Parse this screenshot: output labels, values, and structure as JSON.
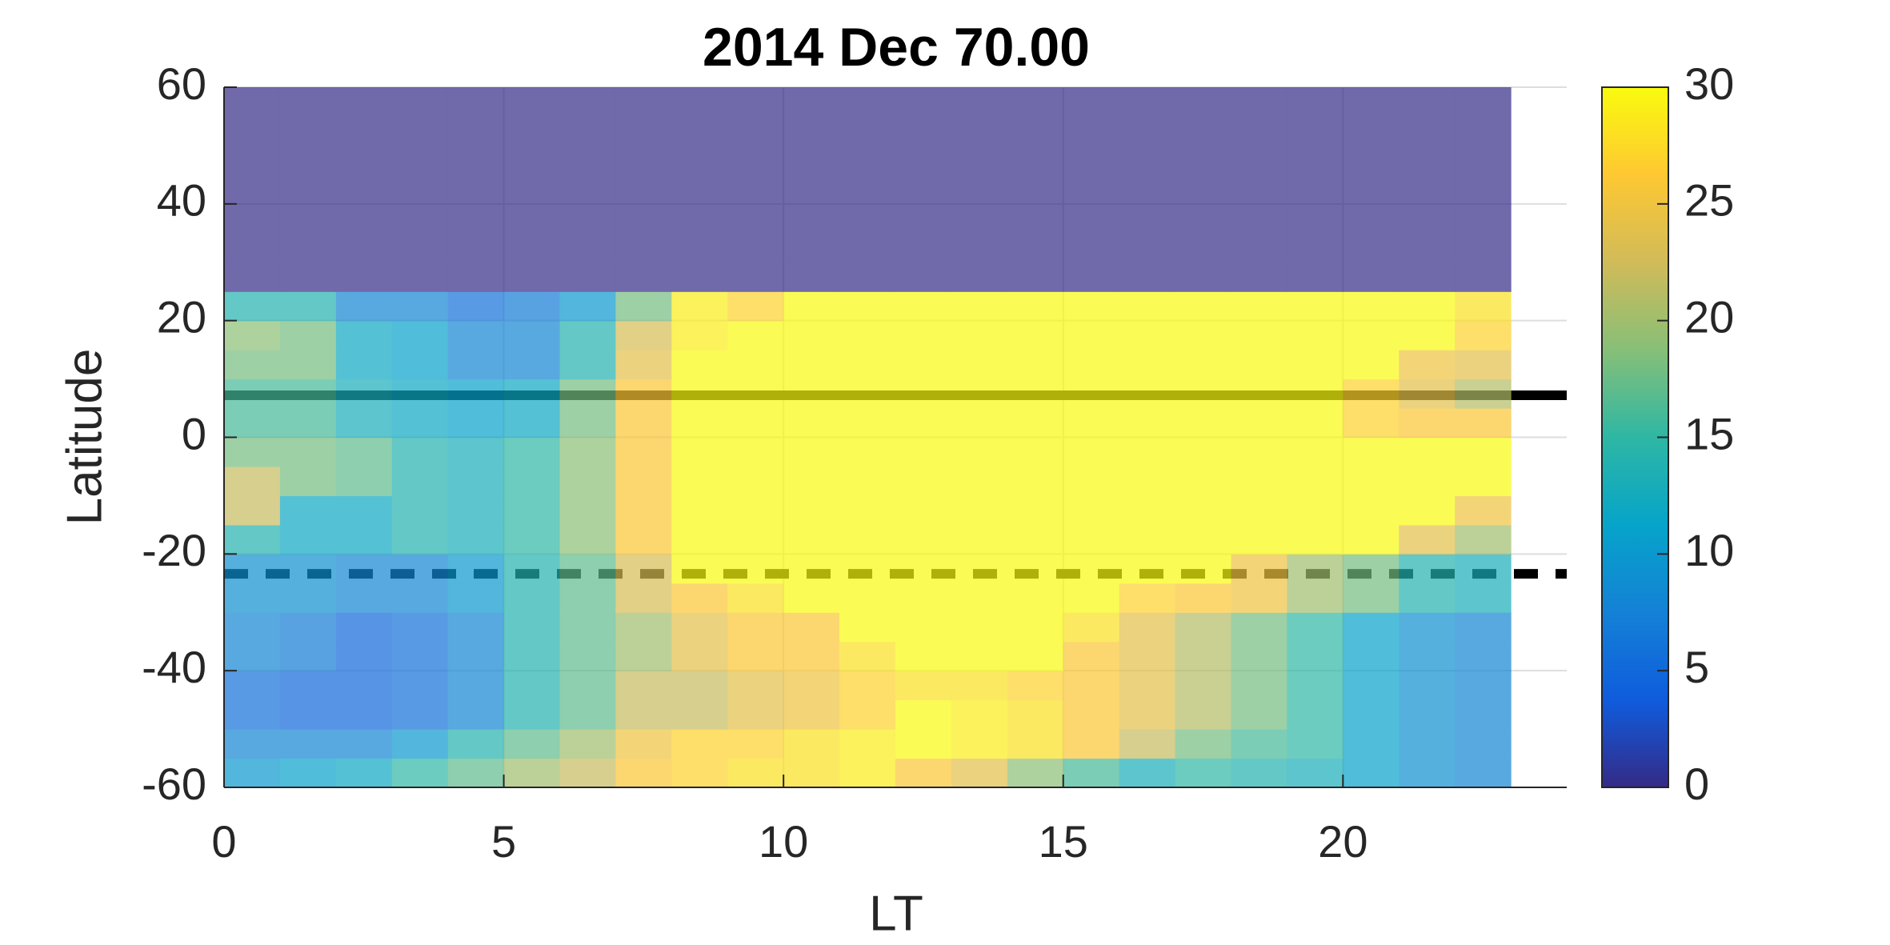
{
  "chart_data": {
    "type": "heatmap",
    "title": "2014 Dec    70.00",
    "xlabel": "LT",
    "ylabel": "Latitude",
    "xlim": [
      0,
      24
    ],
    "ylim": [
      -60,
      60
    ],
    "xticks": [
      0,
      5,
      10,
      15,
      20
    ],
    "yticks": [
      -60,
      -40,
      -20,
      0,
      20,
      40,
      60
    ],
    "grid": true,
    "alpha": 0.7,
    "x_edges": [
      0,
      1,
      2,
      3,
      4,
      5,
      6,
      7,
      8,
      9,
      10,
      11,
      12,
      13,
      14,
      15,
      16,
      17,
      18,
      19,
      20,
      21,
      22,
      23
    ],
    "y_edges": [
      -60,
      -55,
      -50,
      -45,
      -40,
      -35,
      -30,
      -25,
      -20,
      -15,
      -10,
      -5,
      0,
      5,
      10,
      15,
      20,
      25,
      30,
      35,
      40,
      45,
      50,
      55,
      60
    ],
    "z": [
      [
        10,
        11,
        12,
        15,
        17,
        20,
        22,
        26,
        27,
        28,
        28,
        29,
        26,
        24,
        19,
        16,
        13,
        15,
        14,
        13,
        11,
        9,
        8
      ],
      [
        8,
        8,
        8,
        10,
        14,
        17,
        20,
        25,
        27,
        27,
        28,
        29,
        30,
        29,
        28,
        26,
        22,
        18,
        16,
        15,
        11,
        9,
        8
      ],
      [
        6,
        5,
        5,
        6,
        8,
        14,
        17,
        22,
        22,
        24,
        25,
        27,
        30,
        29,
        28,
        26,
        24,
        21,
        18,
        15,
        11,
        9,
        8
      ],
      [
        6,
        5,
        5,
        6,
        8,
        14,
        17,
        22,
        22,
        24,
        25,
        27,
        28,
        28,
        27,
        26,
        24,
        21,
        18,
        15,
        11,
        9,
        8
      ],
      [
        8,
        7,
        5,
        6,
        8,
        14,
        17,
        20,
        24,
        26,
        26,
        28,
        30,
        30,
        30,
        26,
        24,
        21,
        18,
        15,
        11,
        9,
        8
      ],
      [
        8,
        7,
        5,
        6,
        8,
        14,
        17,
        20,
        24,
        26,
        26,
        30,
        30,
        30,
        30,
        28,
        24,
        21,
        18,
        15,
        11,
        9,
        8
      ],
      [
        9,
        9,
        8,
        8,
        10,
        14,
        17,
        23,
        26,
        28,
        30,
        30,
        30,
        30,
        30,
        30,
        27,
        26,
        25,
        20,
        18,
        14,
        13
      ],
      [
        9,
        9,
        8,
        8,
        10,
        14,
        17,
        23,
        30,
        30,
        30,
        30,
        30,
        30,
        30,
        30,
        30,
        30,
        25,
        20,
        18,
        14,
        13
      ],
      [
        14,
        12,
        12,
        14,
        13,
        15,
        19,
        26,
        30,
        30,
        30,
        30,
        30,
        30,
        30,
        30,
        30,
        30,
        30,
        30,
        30,
        24,
        20
      ],
      [
        22,
        12,
        12,
        14,
        13,
        15,
        19,
        26,
        30,
        30,
        30,
        30,
        30,
        30,
        30,
        30,
        30,
        30,
        30,
        30,
        30,
        30,
        25
      ],
      [
        22,
        18,
        17,
        14,
        13,
        15,
        19,
        26,
        30,
        30,
        30,
        30,
        30,
        30,
        30,
        30,
        30,
        30,
        30,
        30,
        30,
        30,
        30
      ],
      [
        18,
        18,
        17,
        14,
        13,
        15,
        19,
        26,
        30,
        30,
        30,
        30,
        30,
        30,
        30,
        30,
        30,
        30,
        30,
        30,
        30,
        30,
        30
      ],
      [
        16,
        16,
        13,
        12,
        11,
        12,
        18,
        26,
        30,
        30,
        30,
        30,
        30,
        30,
        30,
        30,
        30,
        30,
        30,
        30,
        27,
        26,
        26
      ],
      [
        16,
        16,
        13,
        12,
        11,
        12,
        18,
        26,
        30,
        30,
        30,
        30,
        30,
        30,
        30,
        30,
        30,
        30,
        30,
        30,
        27,
        24,
        21
      ],
      [
        18,
        18,
        12,
        11,
        8,
        8,
        14,
        24,
        30,
        30,
        30,
        30,
        30,
        30,
        30,
        30,
        30,
        30,
        30,
        30,
        30,
        25,
        24
      ],
      [
        19,
        18,
        12,
        11,
        8,
        8,
        14,
        23,
        29,
        30,
        30,
        30,
        30,
        30,
        30,
        30,
        30,
        30,
        30,
        30,
        30,
        30,
        27
      ],
      [
        14,
        14,
        8,
        8,
        6,
        7,
        10,
        18,
        29,
        27,
        30,
        30,
        30,
        30,
        30,
        30,
        30,
        30,
        30,
        30,
        30,
        30,
        28
      ],
      [
        0,
        0,
        0,
        0,
        0,
        0,
        0,
        0,
        0,
        0,
        0,
        0,
        0,
        0,
        0,
        0,
        0,
        0,
        0,
        0,
        0,
        0,
        0
      ],
      [
        0,
        0,
        0,
        0,
        0,
        0,
        0,
        0,
        0,
        0,
        0,
        0,
        0,
        0,
        0,
        0,
        0,
        0,
        0,
        0,
        0,
        0,
        0
      ],
      [
        0,
        0,
        0,
        0,
        0,
        0,
        0,
        0,
        0,
        0,
        0,
        0,
        0,
        0,
        0,
        0,
        0,
        0,
        0,
        0,
        0,
        0,
        0
      ],
      [
        0,
        0,
        0,
        0,
        0,
        0,
        0,
        0,
        0,
        0,
        0,
        0,
        0,
        0,
        0,
        0,
        0,
        0,
        0,
        0,
        0,
        0,
        0
      ],
      [
        0,
        0,
        0,
        0,
        0,
        0,
        0,
        0,
        0,
        0,
        0,
        0,
        0,
        0,
        0,
        0,
        0,
        0,
        0,
        0,
        0,
        0,
        0
      ],
      [
        0,
        0,
        0,
        0,
        0,
        0,
        0,
        0,
        0,
        0,
        0,
        0,
        0,
        0,
        0,
        0,
        0,
        0,
        0,
        0,
        0,
        0,
        0
      ],
      [
        0,
        0,
        0,
        0,
        0,
        0,
        0,
        0,
        0,
        0,
        0,
        0,
        0,
        0,
        0,
        0,
        0,
        0,
        0,
        0,
        0,
        0,
        0
      ]
    ],
    "hlines": [
      {
        "value": 7.2,
        "style": "solid",
        "color": "#000000"
      },
      {
        "value": -23.4,
        "style": "dashed",
        "color": "#000000"
      }
    ],
    "colorbar": {
      "clim": [
        0,
        30
      ],
      "ticks": [
        0,
        5,
        10,
        15,
        20,
        25,
        30
      ]
    }
  }
}
